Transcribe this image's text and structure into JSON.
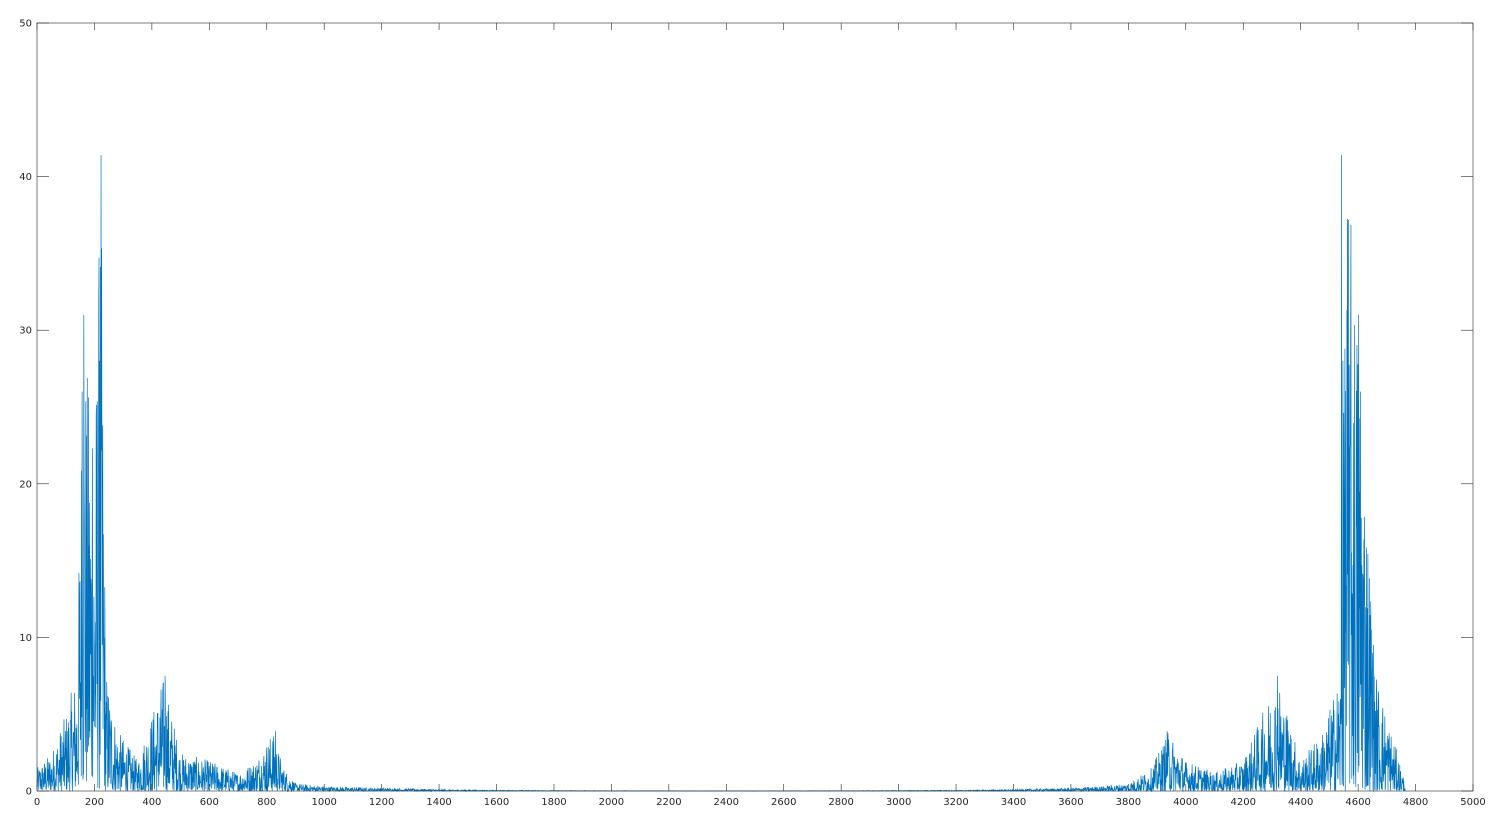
{
  "chart_data": {
    "type": "line",
    "title": "",
    "xlabel": "",
    "ylabel": "",
    "xlim": [
      0,
      5000
    ],
    "ylim": [
      0,
      50
    ],
    "x_ticks": [
      0,
      200,
      400,
      600,
      800,
      1000,
      1200,
      1400,
      1600,
      1800,
      2000,
      2200,
      2400,
      2600,
      2800,
      3000,
      3200,
      3400,
      3600,
      3800,
      4000,
      4200,
      4400,
      4600,
      4800,
      5000
    ],
    "y_ticks": [
      0,
      10,
      20,
      30,
      40,
      50
    ],
    "grid": false,
    "series": [
      {
        "color": "#0072BD",
        "n_points": 4765,
        "envelope_x": [
          0,
          50,
          100,
          140,
          160,
          200,
          222,
          240,
          280,
          350,
          440,
          500,
          600,
          700,
          760,
          820,
          860,
          900,
          1000,
          1200,
          1400,
          1600,
          2000,
          2380,
          2800,
          3200,
          3400,
          3600,
          3700,
          3800,
          3880,
          3940,
          4000,
          4100,
          4200,
          4320,
          4400,
          4480,
          4540,
          4560,
          4600,
          4660,
          4700,
          4765
        ],
        "envelope_y": [
          1.5,
          2.5,
          5,
          8,
          31,
          22,
          41.4,
          8,
          4,
          2,
          7.5,
          2.5,
          2,
          1.2,
          2,
          3.9,
          1.5,
          0.5,
          0.3,
          0.2,
          0.1,
          0.05,
          0.02,
          0.01,
          0.02,
          0.05,
          0.1,
          0.2,
          0.3,
          0.5,
          1.5,
          3.9,
          2,
          1.2,
          2,
          7.5,
          2,
          4,
          8,
          41.4,
          31,
          8,
          5,
          0.5
        ],
        "peaks": [
          {
            "x": 223,
            "y": 41.4
          },
          {
            "x": 163,
            "y": 31
          },
          {
            "x": 218,
            "y": 28
          },
          {
            "x": 157,
            "y": 26
          },
          {
            "x": 193,
            "y": 22.3
          },
          {
            "x": 214,
            "y": 18.4
          },
          {
            "x": 446,
            "y": 7.5
          },
          {
            "x": 830,
            "y": 3.9
          },
          {
            "x": 3935,
            "y": 3.9
          },
          {
            "x": 4319,
            "y": 7.5
          },
          {
            "x": 4551,
            "y": 18.4
          },
          {
            "x": 4572,
            "y": 22.3
          },
          {
            "x": 4608,
            "y": 26
          },
          {
            "x": 4547,
            "y": 28
          },
          {
            "x": 4602,
            "y": 31
          },
          {
            "x": 4542,
            "y": 41.4
          }
        ]
      }
    ]
  }
}
